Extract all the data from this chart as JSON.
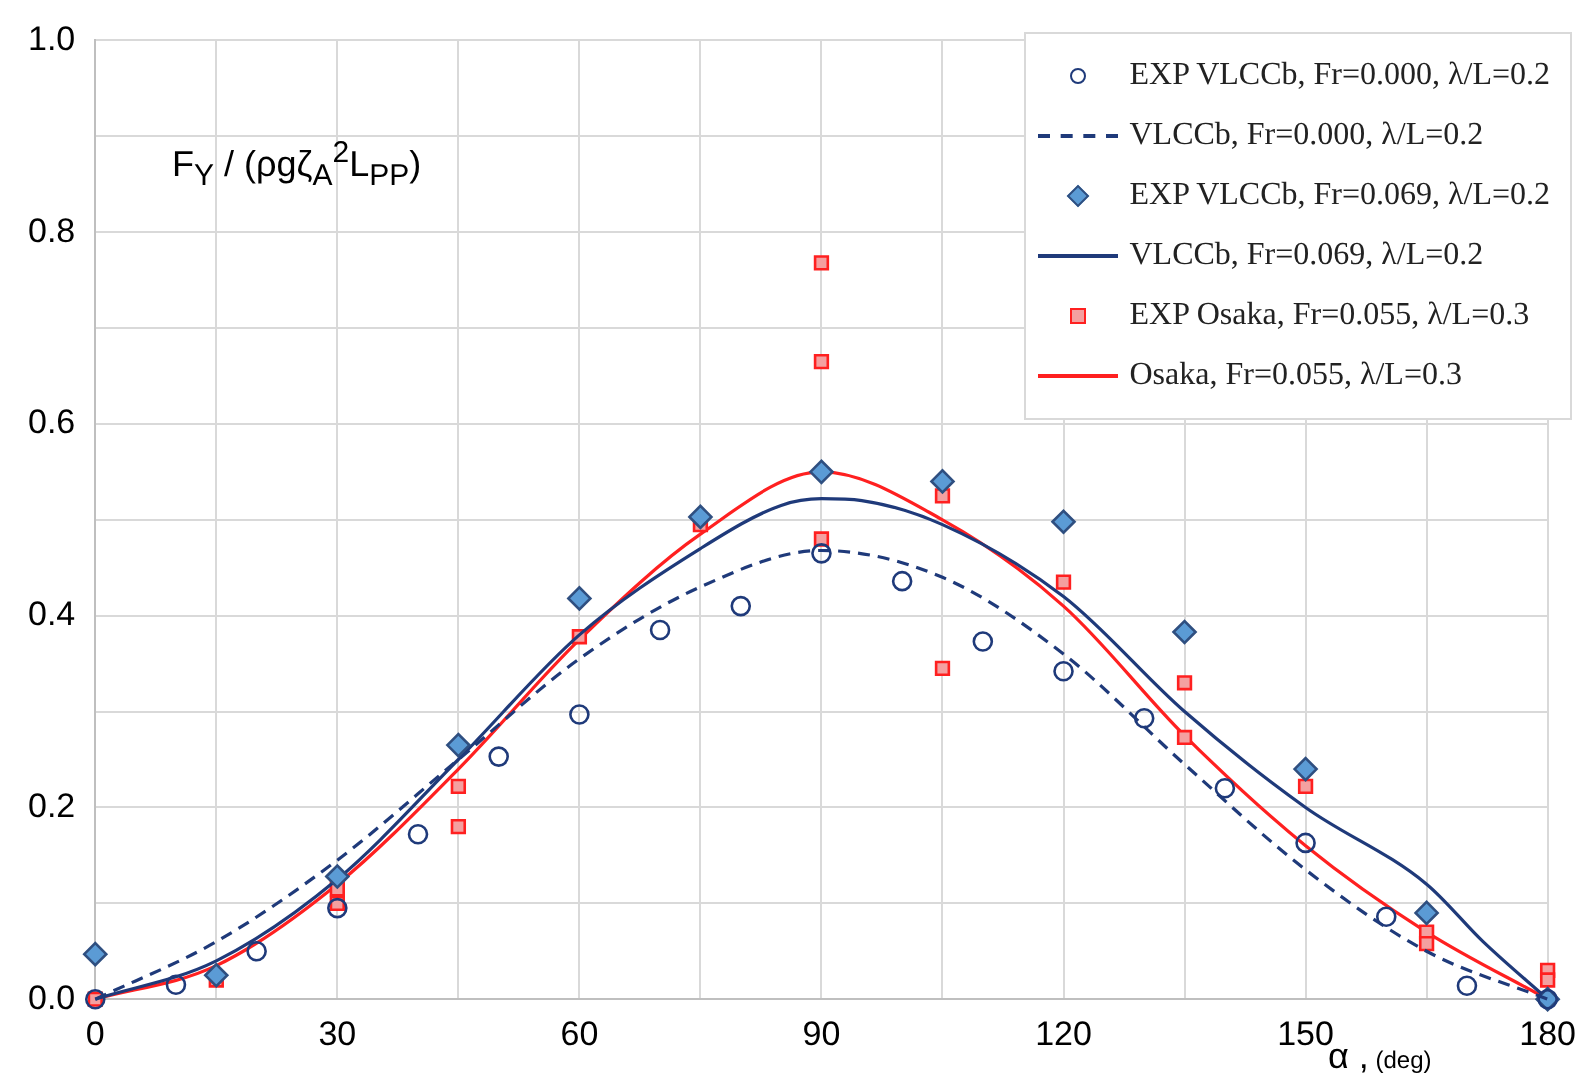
{
  "chart_data": {
    "type": "line",
    "ylabel": "F$_{Y}$ / (ρgζ$_{A}$$^{2}$L$_{PP}$)",
    "xlabel": "α , (deg)",
    "xlim": [
      0,
      180
    ],
    "xticks": [
      0,
      {
        "value": 15,
        "label": null
      },
      30,
      {
        "value": 45,
        "label": null
      },
      60,
      {
        "value": 75,
        "label": null
      },
      90,
      {
        "value": 105,
        "label": null
      },
      120,
      {
        "value": 135,
        "label": null
      },
      150,
      {
        "value": 165,
        "label": null
      },
      180
    ],
    "ylim": [
      0,
      1
    ],
    "yticks": [
      {
        "value": 0,
        "label": "0.0"
      },
      {
        "value": 0.1,
        "label": null
      },
      {
        "value": 0.2,
        "label": "0.2"
      },
      {
        "value": 0.3,
        "label": null
      },
      {
        "value": 0.4,
        "label": "0.4"
      },
      {
        "value": 0.5,
        "label": null
      },
      {
        "value": 0.6,
        "label": "0.6"
      },
      {
        "value": 0.7,
        "label": null
      },
      {
        "value": 0.8,
        "label": "0.8"
      },
      {
        "value": 0.9,
        "label": null
      },
      {
        "value": 1,
        "label": "1.0"
      }
    ],
    "grid": true,
    "legend": "top right",
    "series": [
      {
        "name": "EXP VLCCb, Fr=0.000, λ/L=0.2",
        "type": "scatter",
        "marker": "circle",
        "color": "#1f3a7a",
        "x": [
          0,
          10,
          20,
          30,
          40,
          50,
          60,
          70,
          80,
          90,
          100,
          110,
          120,
          130,
          140,
          150,
          160,
          170,
          180
        ],
        "values": [
          0,
          0.015,
          0.05,
          0.095,
          0.172,
          0.253,
          0.297,
          0.385,
          0.41,
          0.465,
          0.436,
          0.373,
          0.342,
          0.293,
          0.22,
          0.163,
          0.086,
          0.014,
          0
        ]
      },
      {
        "name": "VLCCb, Fr=0.000, λ/L=0.2",
        "line_style": "dashed",
        "color": "#1f3a7a",
        "x": [
          0,
          15,
          30,
          45,
          60,
          75,
          90,
          105,
          120,
          135,
          150,
          165,
          180
        ],
        "values": [
          0,
          0.06,
          0.145,
          0.25,
          0.355,
          0.43,
          0.468,
          0.44,
          0.36,
          0.245,
          0.135,
          0.05,
          0
        ]
      },
      {
        "name": "EXP VLCCb, Fr=0.069, λ/L=0.2",
        "type": "scatter",
        "marker": "diamond",
        "color": "#5b9bd5",
        "x": [
          0,
          15,
          30,
          45,
          60,
          75,
          90,
          105,
          120,
          135,
          150,
          165,
          180
        ],
        "values": [
          0.047,
          0.025,
          0.128,
          0.265,
          0.418,
          0.503,
          0.55,
          0.54,
          0.498,
          0.383,
          0.24,
          0.09,
          0
        ]
      },
      {
        "name": "VLCCb, Fr=0.069, λ/L=0.2",
        "line_style": "solid",
        "color": "#1f3a7a",
        "x": [
          0,
          15,
          30,
          45,
          60,
          75,
          85,
          90,
          95,
          105,
          120,
          135,
          150,
          165,
          172,
          180
        ],
        "values": [
          0,
          0.04,
          0.125,
          0.25,
          0.38,
          0.47,
          0.515,
          0.522,
          0.52,
          0.495,
          0.42,
          0.3,
          0.2,
          0.12,
          0.06,
          0
        ]
      },
      {
        "name": "EXP Osaka, Fr=0.055, λ/L=0.3",
        "type": "scatter",
        "marker": "square",
        "color": "#f4a0a0",
        "x": [
          0,
          15,
          30,
          30,
          45,
          45,
          60,
          75,
          90,
          90,
          90,
          105,
          105,
          120,
          135,
          135,
          150,
          165,
          165,
          180,
          180
        ],
        "values": [
          0,
          0.02,
          0.1,
          0.115,
          0.18,
          0.222,
          0.378,
          0.495,
          0.768,
          0.665,
          0.48,
          0.525,
          0.345,
          0.435,
          0.33,
          0.273,
          0.222,
          0.07,
          0.058,
          0.03,
          0.02
        ]
      },
      {
        "name": "Osaka, Fr=0.055, λ/L=0.3",
        "line_style": "solid",
        "color": "#ff2020",
        "x": [
          0,
          15,
          30,
          45,
          60,
          75,
          90,
          105,
          120,
          135,
          150,
          165,
          180
        ],
        "values": [
          0,
          0.035,
          0.12,
          0.24,
          0.375,
          0.485,
          0.55,
          0.5,
          0.41,
          0.275,
          0.16,
          0.07,
          0
        ]
      }
    ]
  }
}
